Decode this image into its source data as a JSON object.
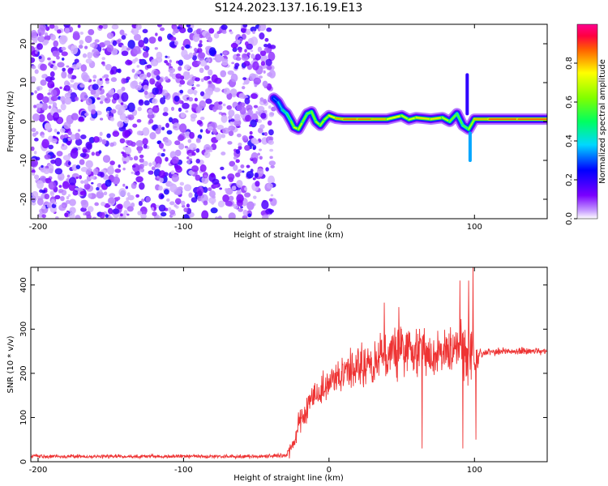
{
  "title": "S124.2023.137.16.19.E13",
  "chart_data": [
    {
      "type": "heatmap",
      "title": "S124.2023.137.16.19.E13",
      "xlabel": "Height of straight line (km)",
      "ylabel": "Frequency (Hz)",
      "xlim": [
        -205,
        150
      ],
      "ylim": [
        -25,
        25
      ],
      "xticks": [
        -200,
        -100,
        0,
        100
      ],
      "yticks": [
        -20,
        -10,
        0,
        10,
        20
      ],
      "grid": false,
      "colorbar": {
        "label": "Normalized spectral amplitude",
        "ticks": [
          0.0,
          0.2,
          0.4,
          0.6,
          0.8
        ],
        "range": [
          0,
          1
        ]
      },
      "noise_region": {
        "x_from": -205,
        "x_to": -38,
        "frequency_range": [
          -25,
          25
        ],
        "amplitude_level": 0.15
      },
      "signal_track": [
        {
          "x": -38,
          "freq": 6,
          "amp": 0.3
        },
        {
          "x": -35,
          "freq": 5,
          "amp": 0.35
        },
        {
          "x": -32,
          "freq": 3,
          "amp": 0.45
        },
        {
          "x": -29,
          "freq": 2,
          "amp": 0.5
        },
        {
          "x": -26,
          "freq": 0,
          "amp": 0.55
        },
        {
          "x": -24,
          "freq": -1.5,
          "amp": 0.7
        },
        {
          "x": -21,
          "freq": -2,
          "amp": 0.75
        },
        {
          "x": -18,
          "freq": 0,
          "amp": 0.65
        },
        {
          "x": -15,
          "freq": 2,
          "amp": 0.6
        },
        {
          "x": -12,
          "freq": 2.5,
          "amp": 0.6
        },
        {
          "x": -9,
          "freq": 0,
          "amp": 0.65
        },
        {
          "x": -6,
          "freq": -1,
          "amp": 0.7
        },
        {
          "x": -3,
          "freq": 0.5,
          "amp": 0.65
        },
        {
          "x": 0,
          "freq": 1.5,
          "amp": 0.7
        },
        {
          "x": 5,
          "freq": 0.8,
          "amp": 0.8
        },
        {
          "x": 10,
          "freq": 0.6,
          "amp": 0.85
        },
        {
          "x": 20,
          "freq": 0.6,
          "amp": 0.9
        },
        {
          "x": 30,
          "freq": 0.6,
          "amp": 0.85
        },
        {
          "x": 40,
          "freq": 0.6,
          "amp": 0.8
        },
        {
          "x": 50,
          "freq": 1.5,
          "amp": 0.7
        },
        {
          "x": 55,
          "freq": 0.5,
          "amp": 0.7
        },
        {
          "x": 60,
          "freq": 1,
          "amp": 0.75
        },
        {
          "x": 70,
          "freq": 0.6,
          "amp": 0.8
        },
        {
          "x": 78,
          "freq": 1,
          "amp": 0.75
        },
        {
          "x": 83,
          "freq": 0,
          "amp": 0.65
        },
        {
          "x": 88,
          "freq": 2,
          "amp": 0.6
        },
        {
          "x": 92,
          "freq": -1,
          "amp": 0.55
        },
        {
          "x": 96,
          "freq": -2,
          "amp": 0.6
        },
        {
          "x": 100,
          "freq": 0.6,
          "amp": 0.75
        },
        {
          "x": 110,
          "freq": 0.6,
          "amp": 0.9
        },
        {
          "x": 130,
          "freq": 0.6,
          "amp": 0.9
        },
        {
          "x": 150,
          "freq": 0.6,
          "amp": 0.9
        }
      ],
      "spurs": [
        {
          "x": 95,
          "freq_from": 2,
          "freq_to": 12,
          "amp": 0.2
        },
        {
          "x": 97,
          "freq_from": -10,
          "freq_to": -3,
          "amp": 0.35
        }
      ]
    },
    {
      "type": "line",
      "xlabel": "Height of straight line (km)",
      "ylabel": "SNR (10 * v/v)",
      "xlim": [
        -205,
        150
      ],
      "ylim": [
        0,
        440
      ],
      "xticks": [
        -200,
        -100,
        0,
        100
      ],
      "yticks": [
        0,
        100,
        200,
        300,
        400
      ],
      "grid": false,
      "line_color": "#ee3333",
      "series": [
        {
          "x": [
            -205,
            -150,
            -100,
            -50,
            -30,
            -25,
            -20,
            -15,
            -10,
            -5,
            0,
            5,
            10,
            15,
            20,
            25,
            30,
            35,
            40,
            45,
            50,
            55,
            60,
            65,
            70,
            75,
            80,
            85,
            90,
            95,
            100,
            105,
            110,
            120,
            130,
            140,
            150
          ],
          "values": [
            12,
            12,
            12,
            12,
            14,
            30,
            95,
            120,
            150,
            165,
            180,
            190,
            200,
            210,
            215,
            220,
            225,
            235,
            245,
            250,
            255,
            250,
            245,
            255,
            240,
            245,
            250,
            248,
            250,
            245,
            235,
            245,
            248,
            250,
            250,
            250,
            250
          ],
          "variability": [
            5,
            5,
            5,
            5,
            6,
            25,
            45,
            40,
            40,
            40,
            40,
            45,
            50,
            55,
            55,
            60,
            60,
            65,
            70,
            70,
            75,
            70,
            70,
            70,
            65,
            65,
            70,
            75,
            80,
            85,
            75,
            12,
            10,
            10,
            10,
            10,
            10
          ]
        }
      ],
      "peaks": [
        {
          "x": 38,
          "value": 360
        },
        {
          "x": 48,
          "value": 350
        },
        {
          "x": 64,
          "value": 30
        },
        {
          "x": 90,
          "value": 410
        },
        {
          "x": 92,
          "value": 30
        },
        {
          "x": 96,
          "value": 410
        },
        {
          "x": 99,
          "value": 440
        },
        {
          "x": 101,
          "value": 50
        }
      ]
    }
  ]
}
